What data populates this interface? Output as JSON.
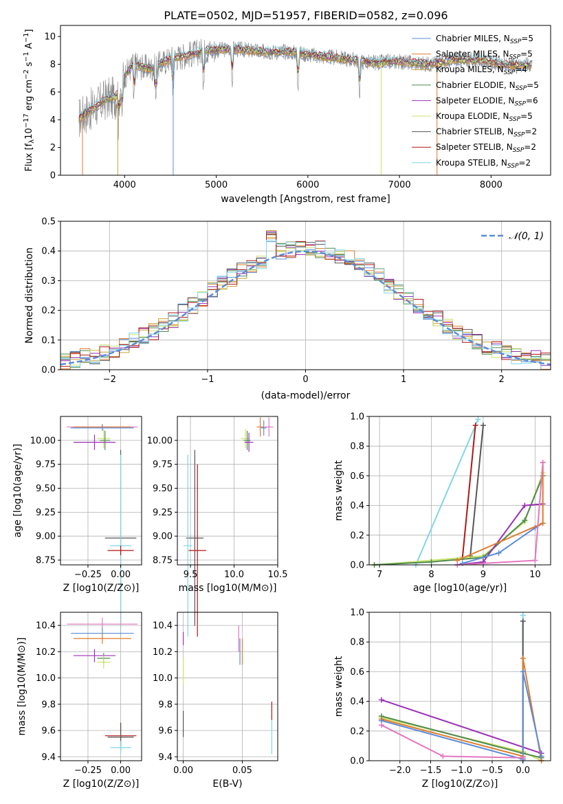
{
  "colors": {
    "chabrier_miles": "#5b8bd8",
    "salpeter_miles": "#e07b2a",
    "kroupa_miles": "#c5a030",
    "chabrier_elodie": "#4e8a4e",
    "salpeter_elodie": "#9a2fb5",
    "kroupa_elodie": "#c8e36a",
    "chabrier_stelib": "#555555",
    "salpeter_stelib": "#b01515",
    "kroupa_stelib": "#7fd6e6",
    "pink": "#e377c2",
    "data": "#808080",
    "normal_curve": "#5b8bd8",
    "grid": "#b0b0b0"
  },
  "figure_title": "PLATE=0502, MJD=51957, FIBERID=0582, z=0.096",
  "spectrum_panel": {
    "ylabel_main": "Flux [f",
    "ylabel_sub": "λ",
    "ylabel_rest": "10",
    "ylabel_exp": "−17",
    "ylabel_units": " erg cm",
    "ylabel_exp2": "−2",
    "ylabel_s": " s",
    "ylabel_exp3": "−1",
    "ylabel_A": " A",
    "ylabel_exp4": "−1",
    "ylabel_close": "]",
    "xlabel": "wavelength [Angstrom, rest frame]",
    "legend": [
      {
        "model": "Chabrier MILES, N",
        "sub": "SSP",
        "count": "=5"
      },
      {
        "model": "Salpeter MILES, N",
        "sub": "SSP",
        "count": "=5"
      },
      {
        "model": "Kroupa MILES, N",
        "sub": "SSP",
        "count": "=4"
      },
      {
        "model": "Chabrier ELODIE, N",
        "sub": "SSP",
        "count": "=5"
      },
      {
        "model": "Salpeter ELODIE, N",
        "sub": "SSP",
        "count": "=6"
      },
      {
        "model": "Kroupa ELODIE, N",
        "sub": "SSP",
        "count": "=5"
      },
      {
        "model": "Chabrier STELIB, N",
        "sub": "SSP",
        "count": "=2"
      },
      {
        "model": "Salpeter STELIB, N",
        "sub": "SSP",
        "count": "=2"
      },
      {
        "model": "Kroupa STELIB, N",
        "sub": "SSP",
        "count": "=2"
      }
    ]
  },
  "residual_panel": {
    "ylabel": "Normed distribution",
    "xlabel": "(data-model)/error",
    "legend_label": "𝒩(0, 1)"
  },
  "age_z_panel": {
    "ylabel": "age  [log10(age/yr)]",
    "xlabel": "Z [log10(Z/Z⊙)]"
  },
  "age_mass_panel": {
    "xlabel": "mass [log10(M/M⊙)]"
  },
  "mw_age_panel": {
    "ylabel": "mass weight",
    "xlabel": "age  [log10(age/yr)]"
  },
  "mass_z_panel": {
    "ylabel": "mass [log10(M/M⊙)]",
    "xlabel": "Z [log10(Z/Z⊙)]"
  },
  "mass_ebv_panel": {
    "xlabel": "E(B-V)"
  },
  "mw_z_panel": {
    "ylabel": "mass weight",
    "xlabel": "Z [log10(Z/Z⊙)]"
  },
  "chart_data": [
    {
      "type": "line",
      "title": "PLATE=0502, MJD=51957, FIBERID=0582, z=0.096",
      "xlabel": "wavelength [Angstrom, rest frame]",
      "ylabel": "Flux [fλ10−17 erg cm−2 s−1 A−1]",
      "xlim": [
        3300,
        8650
      ],
      "ylim": [
        0,
        10.8
      ],
      "xticks": [
        4000,
        5000,
        6000,
        7000,
        8000
      ],
      "yticks": [
        0,
        2,
        4,
        6,
        8,
        10
      ],
      "grid": false,
      "legend_position": "right",
      "continuum": {
        "x": [
          3500,
          3600,
          3700,
          3800,
          3900,
          4000,
          4100,
          4200,
          4300,
          4500,
          4700,
          4900,
          5200,
          5500,
          5800,
          6100,
          6400,
          6700,
          7000,
          7300,
          7600,
          7900,
          8200,
          8450
        ],
        "y": [
          4.1,
          4.6,
          5.0,
          5.5,
          5.6,
          7.2,
          8.0,
          7.8,
          7.7,
          8.4,
          8.7,
          9.0,
          9.1,
          8.9,
          8.9,
          8.6,
          8.4,
          8.1,
          8.2,
          8.0,
          8.3,
          8.3,
          7.9,
          8.0
        ]
      },
      "series": [
        {
          "name": "Chabrier MILES, NSSP=5"
        },
        {
          "name": "Salpeter MILES, NSSP=5"
        },
        {
          "name": "Kroupa MILES, NSSP=4"
        },
        {
          "name": "Chabrier ELODIE, NSSP=5"
        },
        {
          "name": "Salpeter ELODIE, NSSP=6"
        },
        {
          "name": "Kroupa ELODIE, NSSP=5"
        },
        {
          "name": "Chabrier STELIB, NSSP=2"
        },
        {
          "name": "Salpeter STELIB, NSSP=2"
        },
        {
          "name": "Kroupa STELIB, NSSP=2"
        }
      ],
      "absorption_lines": [
        3934,
        3969,
        4102,
        4340,
        4530,
        4861,
        5175,
        5890,
        6563
      ]
    },
    {
      "type": "histogram",
      "xlabel": "(data-model)/error",
      "ylabel": "Normed distribution",
      "xlim": [
        -2.5,
        2.5
      ],
      "ylim": [
        0,
        0.5
      ],
      "xticks": [
        -2,
        -1,
        0,
        1,
        2
      ],
      "yticks": [
        0.0,
        0.1,
        0.2,
        0.3,
        0.4,
        0.5
      ],
      "grid": true,
      "legend": "𝒩(0, 1)",
      "legend_position": "top-right",
      "bin_width": 0.1
    },
    {
      "type": "scatter",
      "xlabel": "Z [log10(Z/Z⊙)]",
      "ylabel": "age  [log10(age/yr)]",
      "xlim": [
        -0.46,
        0.16
      ],
      "ylim": [
        8.7,
        10.25
      ],
      "xticks": [
        -0.25,
        0.0
      ],
      "yticks": [
        8.75,
        9.0,
        9.25,
        9.5,
        9.75,
        10.0
      ],
      "grid": true,
      "points": [
        {
          "x": -0.14,
          "y": 10.14,
          "xerr": 0.27,
          "yerr": 0.03,
          "c": "pink"
        },
        {
          "x": -0.14,
          "y": 10.14,
          "xerr": 0.22,
          "yerr": 0.03,
          "c": "salpeter_miles"
        },
        {
          "x": -0.14,
          "y": 10.13,
          "xerr": 0.24,
          "yerr": 0.03,
          "c": "chabrier_miles"
        },
        {
          "x": -0.13,
          "y": 10.02,
          "xerr": 0.05,
          "yerr": 0.1,
          "c": "kroupa_elodie"
        },
        {
          "x": -0.12,
          "y": 10.0,
          "xerr": 0.04,
          "yerr": 0.1,
          "c": "chabrier_elodie"
        },
        {
          "x": -0.2,
          "y": 9.98,
          "xerr": 0.16,
          "yerr": 0.08,
          "c": "salpeter_elodie"
        },
        {
          "x": 0.0,
          "y": 8.98,
          "xerr": 0.12,
          "yerr": 0.92,
          "c": "chabrier_stelib"
        },
        {
          "x": 0.0,
          "y": 8.9,
          "xerr": 0.08,
          "yerr": 0.95,
          "c": "kroupa_stelib"
        },
        {
          "x": 0.0,
          "y": 8.85,
          "xerr": 0.1,
          "yerr": 0.05,
          "c": "salpeter_stelib"
        }
      ]
    },
    {
      "type": "scatter",
      "xlabel": "mass [log10(M/M⊙)]",
      "xlim": [
        9.35,
        10.5
      ],
      "ylim": [
        8.7,
        10.25
      ],
      "xticks": [
        9.5,
        10.0,
        10.5
      ],
      "yticks": [
        8.75,
        9.0,
        9.25,
        9.5,
        9.75,
        10.0
      ],
      "grid": true,
      "points": [
        {
          "x": 10.4,
          "y": 10.14,
          "xerr": 0.05,
          "yerr": 0.1,
          "c": "pink"
        },
        {
          "x": 10.3,
          "y": 10.14,
          "xerr": 0.04,
          "yerr": 0.1,
          "c": "salpeter_miles"
        },
        {
          "x": 10.34,
          "y": 10.13,
          "xerr": 0.03,
          "yerr": 0.08,
          "c": "chabrier_miles"
        },
        {
          "x": 10.13,
          "y": 10.02,
          "xerr": 0.05,
          "yerr": 0.1,
          "c": "kroupa_elodie"
        },
        {
          "x": 10.15,
          "y": 10.0,
          "xerr": 0.04,
          "yerr": 0.1,
          "c": "chabrier_elodie"
        },
        {
          "x": 10.17,
          "y": 9.98,
          "xerr": 0.05,
          "yerr": 0.1,
          "c": "salpeter_elodie"
        },
        {
          "x": 9.55,
          "y": 8.98,
          "xerr": 0.1,
          "yerr": 0.92,
          "c": "chabrier_stelib"
        },
        {
          "x": 9.47,
          "y": 8.9,
          "xerr": 0.05,
          "yerr": 0.95,
          "c": "kroupa_stelib"
        },
        {
          "x": 9.58,
          "y": 8.85,
          "xerr": 0.1,
          "yerr": 0.9,
          "c": "salpeter_stelib"
        }
      ]
    },
    {
      "type": "line",
      "xlabel": "age  [log10(age/yr)]",
      "ylabel": "mass weight",
      "xlim": [
        6.8,
        10.3
      ],
      "ylim": [
        0,
        1.0
      ],
      "xticks": [
        7,
        8,
        9,
        10
      ],
      "yticks": [
        0.0,
        0.2,
        0.4,
        0.6,
        0.8,
        1.0
      ],
      "grid": true,
      "series": [
        {
          "c": "kroupa_stelib",
          "x": [
            7.7,
            8.9
          ],
          "y": [
            0.0,
            0.98
          ]
        },
        {
          "c": "chabrier_stelib",
          "x": [
            8.75,
            9.0
          ],
          "y": [
            0.06,
            0.94
          ]
        },
        {
          "c": "salpeter_stelib",
          "x": [
            8.6,
            8.85
          ],
          "y": [
            0.05,
            0.94
          ]
        },
        {
          "c": "kroupa_elodie",
          "x": [
            6.9,
            8.0,
            9.0,
            9.8,
            10.15
          ],
          "y": [
            0.0,
            0.03,
            0.06,
            0.29,
            0.62
          ]
        },
        {
          "c": "chabrier_elodie",
          "x": [
            6.9,
            8.0,
            9.0,
            9.8,
            10.15
          ],
          "y": [
            0.0,
            0.02,
            0.05,
            0.3,
            0.6
          ]
        },
        {
          "c": "salpeter_elodie",
          "x": [
            8.5,
            9.0,
            9.8,
            10.15
          ],
          "y": [
            0.0,
            0.02,
            0.4,
            0.41
          ]
        },
        {
          "c": "chabrier_miles",
          "x": [
            8.6,
            9.3,
            10.0,
            10.15
          ],
          "y": [
            0.01,
            0.08,
            0.25,
            0.28
          ]
        },
        {
          "c": "salpeter_miles",
          "x": [
            8.5,
            10.15,
            10.15
          ],
          "y": [
            0.03,
            0.28,
            0.69
          ]
        },
        {
          "c": "pink",
          "x": [
            8.5,
            10.0,
            10.15
          ],
          "y": [
            0.0,
            0.03,
            0.69
          ]
        }
      ]
    },
    {
      "type": "scatter",
      "xlabel": "Z [log10(Z/Z⊙)]",
      "ylabel": "mass [log10(M/M⊙)]",
      "xlim": [
        -0.46,
        0.16
      ],
      "ylim": [
        9.37,
        10.5
      ],
      "xticks": [
        -0.25,
        0.0
      ],
      "yticks": [
        9.4,
        9.6,
        9.8,
        10.0,
        10.2,
        10.4
      ],
      "grid": true,
      "points": [
        {
          "x": -0.14,
          "y": 10.41,
          "xerr": 0.27,
          "yerr": 0.05,
          "c": "pink"
        },
        {
          "x": -0.14,
          "y": 10.34,
          "xerr": 0.24,
          "yerr": 0.04,
          "c": "chabrier_miles"
        },
        {
          "x": -0.14,
          "y": 10.3,
          "xerr": 0.22,
          "yerr": 0.04,
          "c": "salpeter_miles"
        },
        {
          "x": -0.2,
          "y": 10.17,
          "xerr": 0.16,
          "yerr": 0.05,
          "c": "salpeter_elodie"
        },
        {
          "x": -0.13,
          "y": 10.15,
          "xerr": 0.05,
          "yerr": 0.04,
          "c": "chabrier_elodie"
        },
        {
          "x": -0.13,
          "y": 10.12,
          "xerr": 0.05,
          "yerr": 0.05,
          "c": "kroupa_elodie"
        },
        {
          "x": 0.0,
          "y": 9.56,
          "xerr": 0.12,
          "yerr": 0.1,
          "c": "salpeter_stelib"
        },
        {
          "x": 0.0,
          "y": 9.55,
          "xerr": 0.1,
          "yerr": 0.1,
          "c": "chabrier_stelib"
        },
        {
          "x": 0.0,
          "y": 9.47,
          "xerr": 0.08,
          "yerr": 0.05,
          "c": "kroupa_stelib"
        }
      ]
    },
    {
      "type": "scatter",
      "xlabel": "E(B-V)",
      "xlim": [
        -0.005,
        0.08
      ],
      "ylim": [
        9.37,
        10.5
      ],
      "xticks": [
        0.0,
        0.05
      ],
      "yticks": [
        9.4,
        9.6,
        9.8,
        10.0,
        10.2,
        10.4
      ],
      "grid": true,
      "points": [
        {
          "x": 0.0,
          "y": 10.3,
          "yerr": 0.05,
          "c": "salpeter_elodie"
        },
        {
          "x": 0.0,
          "y": 10.05,
          "yerr": 0.1,
          "c": "kroupa_elodie"
        },
        {
          "x": 0.0,
          "y": 9.65,
          "yerr": 0.1,
          "c": "chabrier_stelib"
        },
        {
          "x": 0.047,
          "y": 10.3,
          "yerr": 0.1,
          "c": "pink"
        },
        {
          "x": 0.048,
          "y": 10.2,
          "yerr": 0.1,
          "c": "chabrier_miles"
        },
        {
          "x": 0.05,
          "y": 10.2,
          "yerr": 0.1,
          "c": "salpeter_miles"
        },
        {
          "x": 0.075,
          "y": 9.75,
          "yerr": 0.07,
          "c": "salpeter_stelib"
        },
        {
          "x": 0.075,
          "y": 9.55,
          "yerr": 0.13,
          "c": "kroupa_stelib"
        }
      ]
    },
    {
      "type": "line",
      "xlabel": "Z [log10(Z/Z⊙)]",
      "ylabel": "mass weight",
      "xlim": [
        -2.5,
        0.45
      ],
      "ylim": [
        0,
        1.0
      ],
      "xticks": [
        -2.0,
        -1.5,
        -1.0,
        -0.5,
        0.0
      ],
      "yticks": [
        0.0,
        0.2,
        0.4,
        0.6,
        0.8,
        1.0
      ],
      "grid": true,
      "series": [
        {
          "c": "kroupa_stelib",
          "x": [
            0.0,
            0.0
          ],
          "y": [
            0.0,
            0.98
          ]
        },
        {
          "c": "chabrier_stelib",
          "x": [
            0.0,
            0.0
          ],
          "y": [
            0.06,
            0.94
          ]
        },
        {
          "c": "salpeter_elodie",
          "x": [
            -2.3,
            0.3
          ],
          "y": [
            0.41,
            0.05
          ]
        },
        {
          "c": "kroupa_elodie",
          "x": [
            -2.3,
            0.0,
            0.3
          ],
          "y": [
            0.29,
            0.06,
            0.0
          ]
        },
        {
          "c": "chabrier_elodie",
          "x": [
            -2.3,
            0.0,
            0.3
          ],
          "y": [
            0.3,
            0.05,
            0.02
          ]
        },
        {
          "c": "salpeter_miles",
          "x": [
            -2.3,
            0.0,
            0.0,
            0.3
          ],
          "y": [
            0.28,
            0.03,
            0.69,
            0.0
          ]
        },
        {
          "c": "chabrier_miles",
          "x": [
            -2.3,
            0.0,
            0.0,
            0.3
          ],
          "y": [
            0.27,
            0.01,
            0.6,
            0.03
          ]
        },
        {
          "c": "pink",
          "x": [
            -2.3,
            -1.3,
            0.0
          ],
          "y": [
            0.24,
            0.03,
            0.02
          ]
        }
      ]
    }
  ]
}
